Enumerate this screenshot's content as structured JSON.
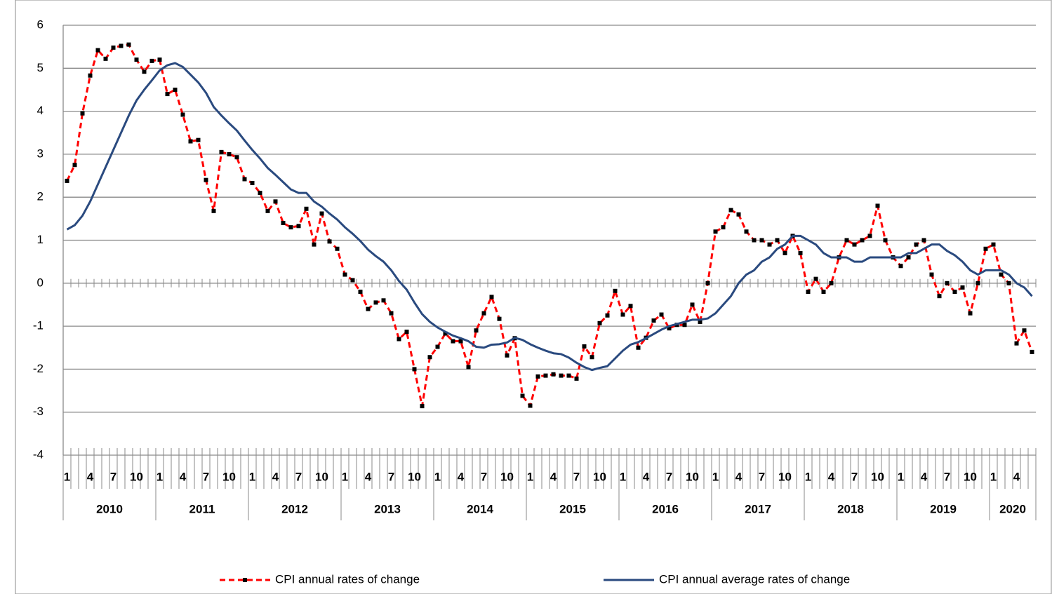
{
  "chart_data": {
    "type": "line",
    "categories": [
      "1",
      null,
      null,
      "4",
      null,
      null,
      "7",
      null,
      null,
      "10",
      null,
      null,
      "1",
      null,
      null,
      "4",
      null,
      null,
      "7",
      null,
      null,
      "10",
      null,
      null,
      "1",
      null,
      null,
      "4",
      null,
      null,
      "7",
      null,
      null,
      "10",
      null,
      null,
      "1",
      null,
      null,
      "4",
      null,
      null,
      "7",
      null,
      null,
      "10",
      null,
      null,
      "1",
      null,
      null,
      "4",
      null,
      null,
      "7",
      null,
      null,
      "10",
      null,
      null,
      "1",
      null,
      null,
      "4",
      null,
      null,
      "7",
      null,
      null,
      "10",
      null,
      null,
      "1",
      null,
      null,
      "4",
      null,
      null,
      "7",
      null,
      null,
      "10",
      null,
      null,
      "1",
      null,
      null,
      "4",
      null,
      null,
      "7",
      null,
      null,
      "10",
      null,
      null,
      "1",
      null,
      null,
      "4",
      null,
      null,
      "7",
      null,
      null,
      "10",
      null,
      null,
      "1",
      null,
      null,
      "4",
      null,
      null,
      "7",
      null,
      null,
      "10",
      null,
      null,
      "1",
      null,
      null,
      "4",
      null,
      null
    ],
    "years": [
      "2010",
      "2011",
      "2012",
      "2013",
      "2014",
      "2015",
      "2016",
      "2017",
      "2018",
      "2019",
      "2020"
    ],
    "series": [
      {
        "name": "CPI annual rates of change",
        "color": "#ff0000",
        "dashed": true,
        "markers": true,
        "values": [
          2.38,
          2.75,
          3.95,
          4.83,
          5.42,
          5.22,
          5.48,
          5.52,
          5.55,
          5.2,
          4.92,
          5.17,
          5.2,
          4.4,
          4.5,
          3.92,
          3.3,
          3.33,
          2.4,
          1.68,
          3.05,
          3.0,
          2.93,
          2.42,
          2.33,
          2.1,
          1.68,
          1.9,
          1.4,
          1.3,
          1.33,
          1.73,
          0.9,
          1.62,
          0.97,
          0.8,
          0.2,
          0.07,
          -0.2,
          -0.6,
          -0.45,
          -0.4,
          -0.7,
          -1.3,
          -1.13,
          -2.0,
          -2.86,
          -1.72,
          -1.48,
          -1.17,
          -1.35,
          -1.35,
          -1.95,
          -1.1,
          -0.7,
          -0.32,
          -0.83,
          -1.68,
          -1.28,
          -2.62,
          -2.85,
          -2.17,
          -2.15,
          -2.12,
          -2.15,
          -2.15,
          -2.22,
          -1.47,
          -1.72,
          -0.93,
          -0.75,
          -0.18,
          -0.73,
          -0.53,
          -1.5,
          -1.27,
          -0.87,
          -0.73,
          -1.05,
          -0.97,
          -0.97,
          -0.5,
          -0.9,
          0.0,
          1.2,
          1.3,
          1.7,
          1.6,
          1.2,
          1.0,
          1.0,
          0.9,
          1.0,
          0.7,
          1.1,
          0.7,
          -0.2,
          0.1,
          -0.2,
          0.0,
          0.6,
          1.0,
          0.9,
          1.0,
          1.1,
          1.8,
          1.0,
          0.6,
          0.4,
          0.6,
          0.9,
          1.0,
          0.2,
          -0.3,
          0.0,
          -0.2,
          -0.1,
          -0.7,
          0.0,
          0.8,
          0.9,
          0.2,
          0.0,
          -1.4,
          -1.1,
          -1.6
        ]
      },
      {
        "name": "CPI annual average rates of change",
        "color": "#2a4a7f",
        "dashed": false,
        "markers": false,
        "values": [
          1.25,
          1.35,
          1.57,
          1.9,
          2.3,
          2.7,
          3.1,
          3.5,
          3.9,
          4.25,
          4.5,
          4.72,
          4.95,
          5.07,
          5.12,
          5.03,
          4.85,
          4.67,
          4.43,
          4.1,
          3.9,
          3.72,
          3.55,
          3.32,
          3.1,
          2.9,
          2.68,
          2.52,
          2.35,
          2.18,
          2.1,
          2.1,
          1.9,
          1.78,
          1.62,
          1.48,
          1.3,
          1.15,
          0.98,
          0.78,
          0.63,
          0.5,
          0.3,
          0.05,
          -0.15,
          -0.45,
          -0.72,
          -0.9,
          -1.03,
          -1.13,
          -1.22,
          -1.28,
          -1.35,
          -1.48,
          -1.5,
          -1.43,
          -1.42,
          -1.38,
          -1.27,
          -1.32,
          -1.42,
          -1.5,
          -1.57,
          -1.63,
          -1.65,
          -1.73,
          -1.85,
          -1.95,
          -2.02,
          -1.97,
          -1.93,
          -1.75,
          -1.57,
          -1.43,
          -1.37,
          -1.28,
          -1.18,
          -1.08,
          -1.0,
          -0.95,
          -0.9,
          -0.85,
          -0.85,
          -0.82,
          -0.7,
          -0.5,
          -0.3,
          0.0,
          0.2,
          0.3,
          0.5,
          0.6,
          0.8,
          0.9,
          1.1,
          1.1,
          1.0,
          0.9,
          0.7,
          0.6,
          0.6,
          0.6,
          0.5,
          0.5,
          0.6,
          0.6,
          0.6,
          0.6,
          0.6,
          0.7,
          0.7,
          0.8,
          0.9,
          0.9,
          0.75,
          0.65,
          0.5,
          0.3,
          0.2,
          0.3,
          0.3,
          0.3,
          0.2,
          0.0,
          -0.1,
          -0.3
        ]
      }
    ],
    "ylim": [
      -4,
      6
    ],
    "yticks": [
      -4,
      -3,
      -2,
      -1,
      0,
      1,
      2,
      3,
      4,
      5,
      6
    ],
    "grid": true,
    "legend": "bottom"
  }
}
